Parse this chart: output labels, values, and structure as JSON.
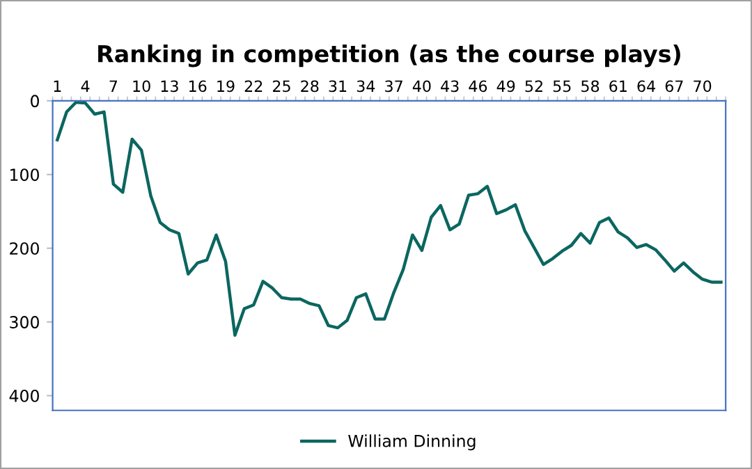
{
  "chart_data": {
    "type": "line",
    "title": "Ranking in competition (as the course plays)",
    "categories": [
      "1",
      null,
      null,
      "4",
      null,
      null,
      "7",
      null,
      null,
      "10",
      null,
      null,
      "13",
      null,
      null,
      "16",
      null,
      null,
      "19",
      null,
      null,
      "22",
      null,
      null,
      "25",
      null,
      null,
      "28",
      null,
      null,
      "31",
      null,
      null,
      "34",
      null,
      null,
      "37",
      null,
      null,
      "40",
      null,
      null,
      "43",
      null,
      null,
      "46",
      null,
      null,
      "49",
      null,
      null,
      "52",
      null,
      null,
      "55",
      null,
      null,
      "58",
      null,
      null,
      "61",
      null,
      null,
      "64",
      null,
      null,
      "67",
      null,
      null,
      "70",
      null,
      null
    ],
    "series": [
      {
        "name": "William Dinning",
        "color": "#0b6660",
        "values": [
          53,
          15,
          2,
          3,
          18,
          15,
          113,
          124,
          52,
          67,
          129,
          165,
          175,
          180,
          235,
          220,
          216,
          182,
          218,
          318,
          282,
          277,
          245,
          254,
          267,
          269,
          269,
          275,
          278,
          305,
          308,
          298,
          267,
          262,
          296,
          296,
          260,
          229,
          182,
          203,
          158,
          142,
          175,
          167,
          128,
          126,
          116,
          153,
          148,
          141,
          176,
          199,
          222,
          214,
          204,
          196,
          180,
          193,
          165,
          159,
          178,
          186,
          199,
          195,
          202,
          216,
          231,
          220,
          232,
          242,
          246,
          246
        ]
      }
    ],
    "ylim": [
      420,
      0
    ],
    "yticks": [
      0,
      100,
      200,
      300,
      400
    ],
    "grid": false,
    "legend": "bottom",
    "marker": "none",
    "line_style": "solid"
  }
}
